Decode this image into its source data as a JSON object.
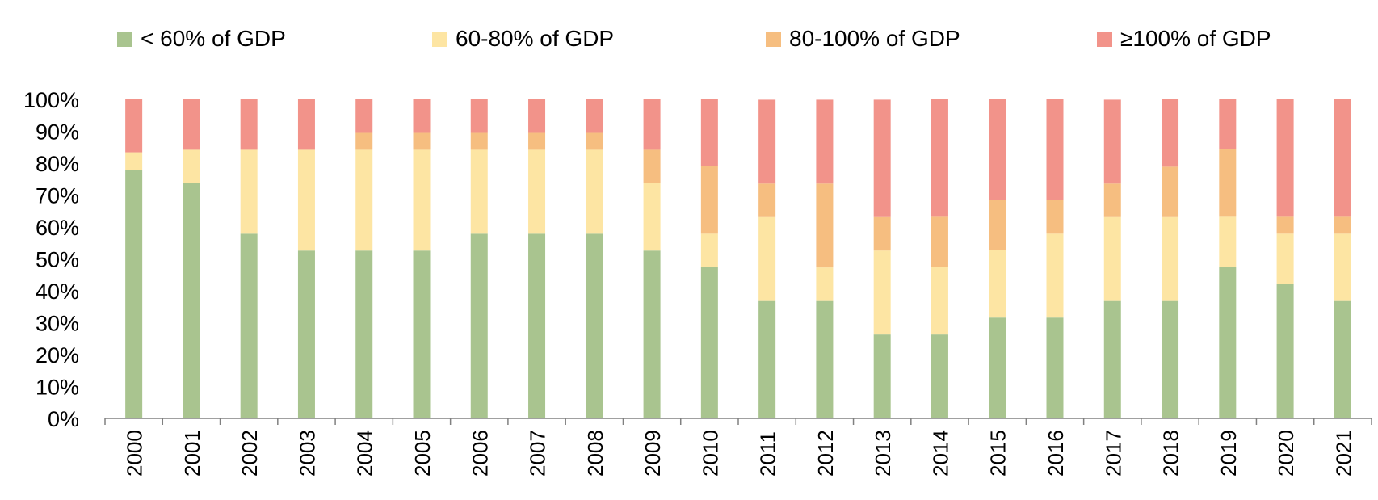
{
  "chart_data": {
    "type": "bar",
    "stacked": true,
    "title": "",
    "xlabel": "",
    "ylabel": "",
    "ylim": [
      0,
      100
    ],
    "yticks": [
      "0%",
      "10%",
      "20%",
      "30%",
      "40%",
      "50%",
      "60%",
      "70%",
      "80%",
      "90%",
      "100%"
    ],
    "categories": [
      "2000",
      "2001",
      "2002",
      "2003",
      "2004",
      "2005",
      "2006",
      "2007",
      "2008",
      "2009",
      "2010",
      "2011",
      "2012",
      "2013",
      "2014",
      "2015",
      "2016",
      "2017",
      "2018",
      "2019",
      "2020",
      "2021"
    ],
    "series": [
      {
        "name": "< 60% of GDP",
        "color": "#a9c48f",
        "values": [
          77.8,
          73.7,
          57.9,
          52.6,
          52.6,
          52.6,
          57.9,
          57.9,
          57.9,
          52.6,
          47.4,
          36.8,
          36.8,
          26.3,
          26.3,
          31.6,
          31.6,
          36.8,
          36.8,
          47.4,
          42.1,
          36.8
        ]
      },
      {
        "name": "60-80% of GDP",
        "color": "#fde5a3",
        "values": [
          5.6,
          10.5,
          26.3,
          31.6,
          31.6,
          31.6,
          26.3,
          26.3,
          26.3,
          21.1,
          10.5,
          26.3,
          10.5,
          26.3,
          21.1,
          21.1,
          26.3,
          26.3,
          26.3,
          15.8,
          15.8,
          21.1
        ]
      },
      {
        "name": "80-100% of GDP",
        "color": "#f6be80",
        "values": [
          0,
          0,
          0,
          0,
          5.3,
          5.3,
          5.3,
          5.3,
          5.3,
          10.5,
          21.1,
          10.5,
          26.3,
          10.5,
          15.8,
          15.8,
          10.5,
          10.5,
          15.8,
          21.1,
          5.3,
          5.3
        ]
      },
      {
        "name": "≥100% of GDP",
        "color": "#f2938a",
        "values": [
          16.7,
          15.8,
          15.8,
          15.8,
          10.5,
          10.5,
          10.5,
          10.5,
          10.5,
          15.8,
          21.1,
          26.3,
          26.3,
          36.8,
          36.8,
          31.6,
          31.6,
          26.3,
          21.1,
          15.8,
          36.8,
          36.8
        ]
      }
    ],
    "legend_position": "top",
    "grid": false
  }
}
